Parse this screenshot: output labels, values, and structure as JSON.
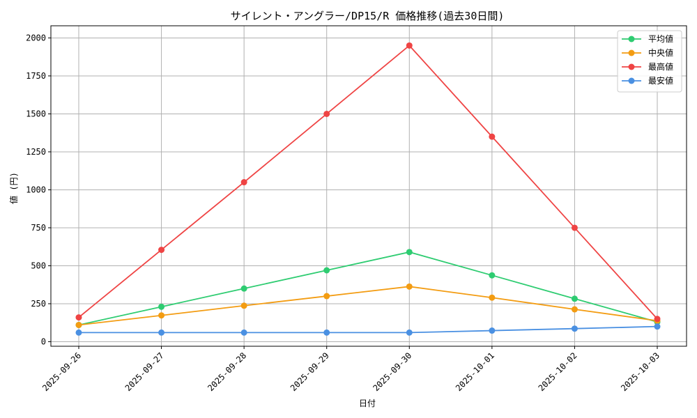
{
  "chart_data": {
    "type": "line",
    "title": "サイレント・アングラー/DP15/R 価格推移(過去30日間)",
    "xlabel": "日付",
    "ylabel": "値 (円)",
    "categories": [
      "2025-09-26",
      "2025-09-27",
      "2025-09-28",
      "2025-09-29",
      "2025-09-30",
      "2025-10-01",
      "2025-10-02",
      "2025-10-03"
    ],
    "ylim": [
      -30,
      2080
    ],
    "yticks": [
      0,
      250,
      500,
      750,
      1000,
      1250,
      1500,
      1750,
      2000
    ],
    "grid": true,
    "legend_position": "top-right",
    "series": [
      {
        "name": "平均値",
        "color": "#2ecc71",
        "values": [
          110,
          230,
          350,
          470,
          590,
          437,
          283,
          130
        ]
      },
      {
        "name": "中央値",
        "color": "#f39c12",
        "values": [
          110,
          173,
          237,
          300,
          363,
          290,
          213,
          138
        ]
      },
      {
        "name": "最高値",
        "color": "#ef4444",
        "values": [
          160,
          605,
          1050,
          1500,
          1950,
          1350,
          750,
          150
        ]
      },
      {
        "name": "最安値",
        "color": "#4a90e2",
        "values": [
          60,
          60,
          60,
          60,
          60,
          73,
          86,
          100
        ]
      }
    ]
  }
}
